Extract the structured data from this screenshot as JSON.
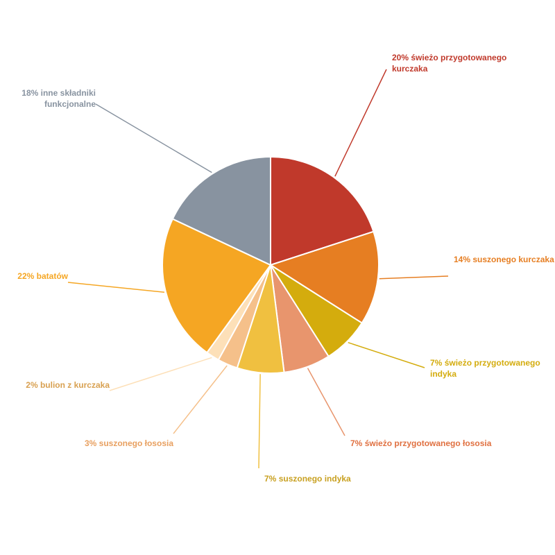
{
  "chart_data": {
    "type": "pie",
    "categories": [
      "świeżo przygotowanego kurczaka",
      "suszonego kurczaka",
      "świeżo przygotowanego indyka",
      "świeżo przygotowanego łososia",
      "suszonego indyka",
      "suszonego łososia",
      "bulion z kurczaka",
      "batatów",
      "inne składniki funkcjonalne"
    ],
    "values": [
      20,
      14,
      7,
      7,
      7,
      3,
      2,
      22,
      18
    ],
    "value_labels": [
      "20%",
      "14%",
      "7%",
      "7%",
      "7%",
      "3%",
      "2%",
      "22%",
      "18%"
    ],
    "colors": [
      "#c0392b",
      "#e67e22",
      "#d4ac0d",
      "#e8956d",
      "#f0c040",
      "#f5c08a",
      "#fde0b8",
      "#f5a623",
      "#8893a0"
    ]
  }
}
